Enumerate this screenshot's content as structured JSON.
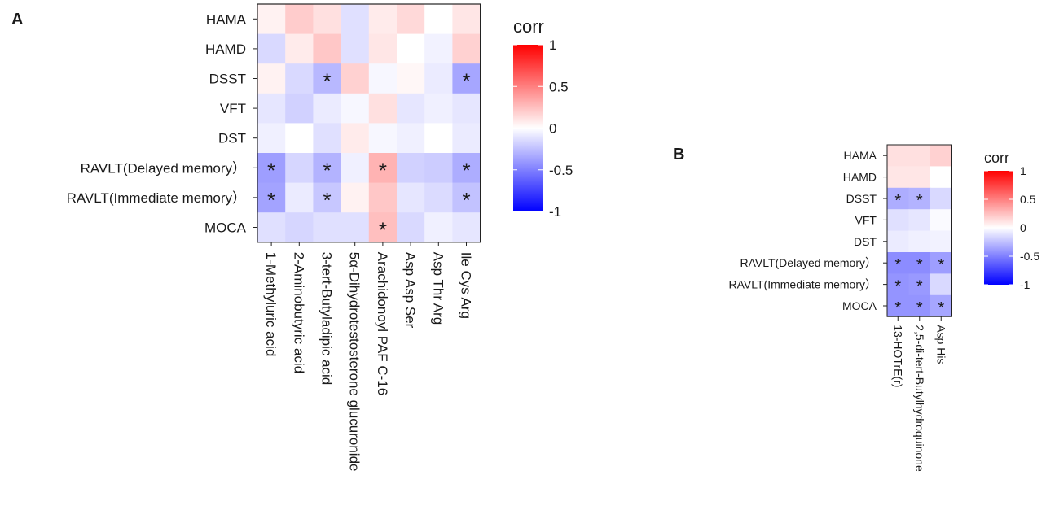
{
  "chart_data": [
    {
      "type": "heatmap",
      "panel": "A",
      "legend_title": "corr",
      "legend_ticks": [
        "1",
        "0.5",
        "0",
        "-0.5",
        "-1"
      ],
      "legend_tick_values": [
        1,
        0.5,
        0,
        -0.5,
        -1
      ],
      "color_range": [
        -1,
        1
      ],
      "rows": [
        "HAMA",
        "HAMD",
        "DSST",
        "VFT",
        "DST",
        "RAVLT(Delayed memory）",
        "RAVLT(Immediate memory）",
        "MOCA"
      ],
      "columns": [
        "1-Methyluric acid",
        "2-Aminobutyric acid",
        "3-tert-Butyladipic acid",
        "5α-Dihydrotestosterone glucuronide",
        "Arachidonoyl PAF C-16",
        "Asp Asp Ser",
        "Asp Thr Arg",
        "Ile Cys Arg"
      ],
      "values": [
        [
          0.05,
          0.2,
          0.12,
          -0.12,
          0.08,
          0.15,
          0.0,
          0.1
        ],
        [
          -0.15,
          0.08,
          0.22,
          -0.12,
          0.1,
          0.0,
          -0.05,
          0.18
        ],
        [
          0.05,
          -0.15,
          -0.28,
          0.18,
          -0.03,
          0.03,
          -0.08,
          -0.35
        ],
        [
          -0.1,
          -0.18,
          -0.08,
          -0.03,
          0.12,
          -0.1,
          -0.06,
          -0.1
        ],
        [
          -0.06,
          0.0,
          -0.12,
          0.08,
          -0.03,
          -0.06,
          0.0,
          -0.08
        ],
        [
          -0.38,
          -0.16,
          -0.3,
          -0.06,
          0.3,
          -0.18,
          -0.2,
          -0.32
        ],
        [
          -0.36,
          -0.08,
          -0.22,
          0.05,
          0.22,
          -0.1,
          -0.14,
          -0.24
        ],
        [
          -0.12,
          -0.16,
          -0.12,
          -0.12,
          0.25,
          -0.15,
          -0.06,
          -0.1
        ]
      ],
      "significant": [
        [
          0,
          0,
          0,
          0,
          0,
          0,
          0,
          0
        ],
        [
          0,
          0,
          0,
          0,
          0,
          0,
          0,
          0
        ],
        [
          0,
          0,
          1,
          0,
          0,
          0,
          0,
          1
        ],
        [
          0,
          0,
          0,
          0,
          0,
          0,
          0,
          0
        ],
        [
          0,
          0,
          0,
          0,
          0,
          0,
          0,
          0
        ],
        [
          1,
          0,
          1,
          0,
          1,
          0,
          0,
          1
        ],
        [
          1,
          0,
          1,
          0,
          0,
          0,
          0,
          1
        ],
        [
          0,
          0,
          0,
          0,
          1,
          0,
          0,
          0
        ]
      ],
      "marker": "*"
    },
    {
      "type": "heatmap",
      "panel": "B",
      "legend_title": "corr",
      "legend_ticks": [
        "1",
        "0.5",
        "0",
        "-0.5",
        "-1"
      ],
      "legend_tick_values": [
        1,
        0.5,
        0,
        -0.5,
        -1
      ],
      "color_range": [
        -1,
        1
      ],
      "rows": [
        "HAMA",
        "HAMD",
        "DSST",
        "VFT",
        "DST",
        "RAVLT(Delayed memory）",
        "RAVLT(Immediate memory）",
        "MOCA"
      ],
      "columns": [
        "13-HOTrE(r)",
        "2,5-di-tert-Butylhydroquinone",
        "Asp His"
      ],
      "values": [
        [
          0.12,
          0.12,
          0.18
        ],
        [
          0.1,
          0.1,
          0.0
        ],
        [
          -0.32,
          -0.3,
          -0.15
        ],
        [
          -0.12,
          -0.1,
          -0.02
        ],
        [
          -0.08,
          -0.06,
          -0.05
        ],
        [
          -0.45,
          -0.45,
          -0.38
        ],
        [
          -0.42,
          -0.4,
          -0.15
        ],
        [
          -0.42,
          -0.42,
          -0.35
        ]
      ],
      "significant": [
        [
          0,
          0,
          0
        ],
        [
          0,
          0,
          0
        ],
        [
          1,
          1,
          0
        ],
        [
          0,
          0,
          0
        ],
        [
          0,
          0,
          0
        ],
        [
          1,
          1,
          1
        ],
        [
          1,
          1,
          0
        ],
        [
          1,
          1,
          1
        ]
      ],
      "marker": "*"
    }
  ]
}
